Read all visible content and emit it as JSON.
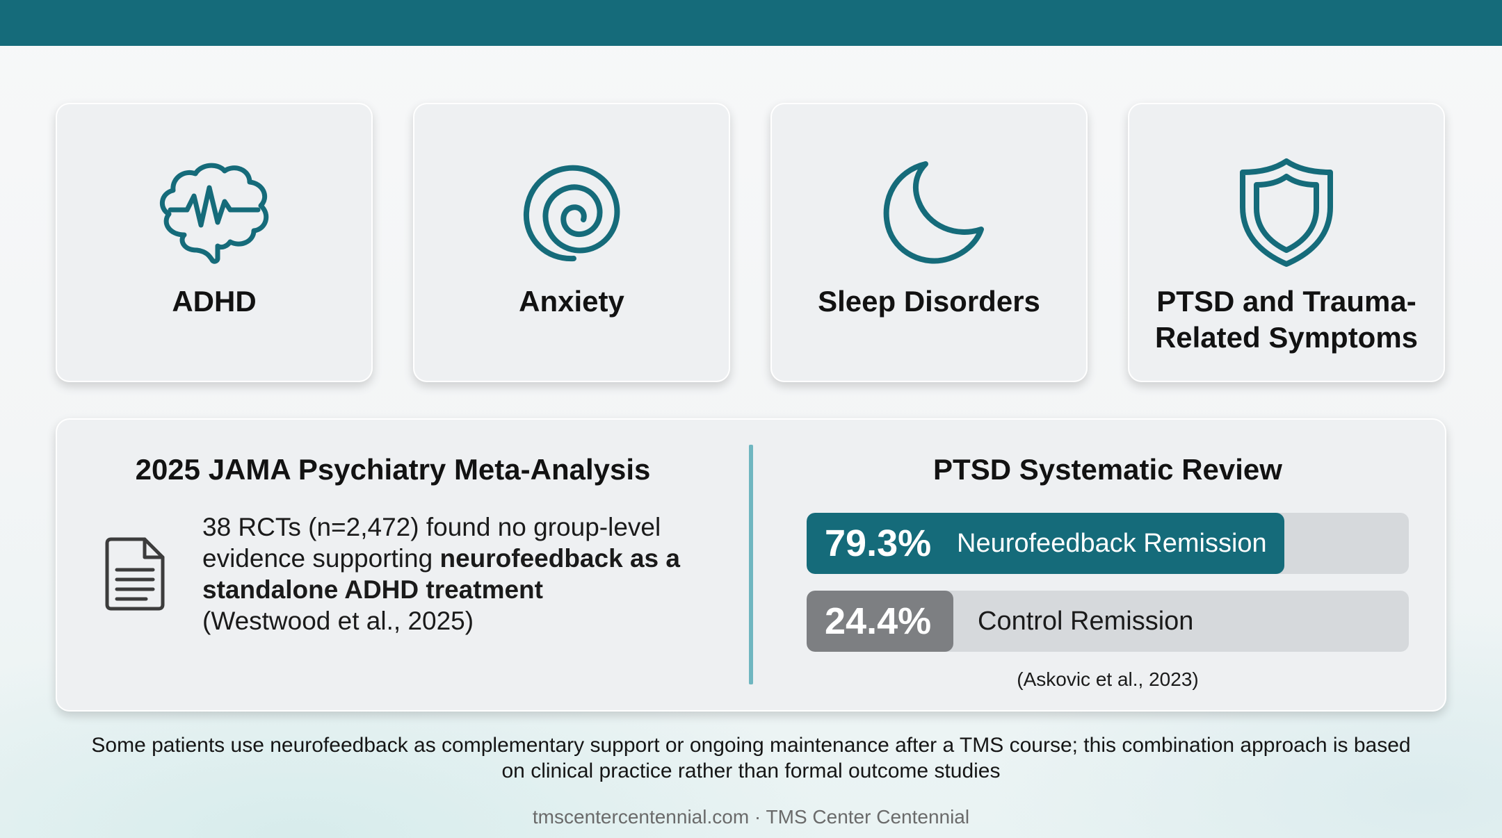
{
  "cards": [
    {
      "label": "ADHD",
      "icon": "brain-pulse-icon"
    },
    {
      "label": "Anxiety",
      "icon": "spiral-icon"
    },
    {
      "label": "Sleep Disorders",
      "icon": "moon-icon"
    },
    {
      "label": "PTSD and Trauma-Related Symptoms",
      "icon": "shield-icon"
    }
  ],
  "meta_analysis": {
    "title": "2025 JAMA Psychiatry Meta-Analysis",
    "icon": "document-icon",
    "text_plain": "38 RCTs (n=2,472) found no group-level evidence supporting ",
    "text_bold": "neurofeedback as a standalone ADHD treatment",
    "citation": "(Westwood et al., 2025)"
  },
  "ptsd_review": {
    "title": "PTSD Systematic Review",
    "bars": [
      {
        "value_label": "79.3%",
        "label": "Neurofeedback Remission",
        "fraction": 0.793,
        "color": "#156b7a"
      },
      {
        "value_label": "24.4%",
        "label": "Control Remission",
        "fraction": 0.244,
        "color": "#7d7f82"
      }
    ],
    "citation": "(Askovic et al., 2023)"
  },
  "footnote": "Some patients use neurofeedback as complementary support or ongoing maintenance after a TMS course; this combination approach is based on clinical practice rather than formal outcome studies",
  "source": "tmscentercentennial.com · TMS Center Centennial",
  "colors": {
    "accent": "#156b7a",
    "divider": "#6fb6c0",
    "control": "#7d7f82"
  }
}
